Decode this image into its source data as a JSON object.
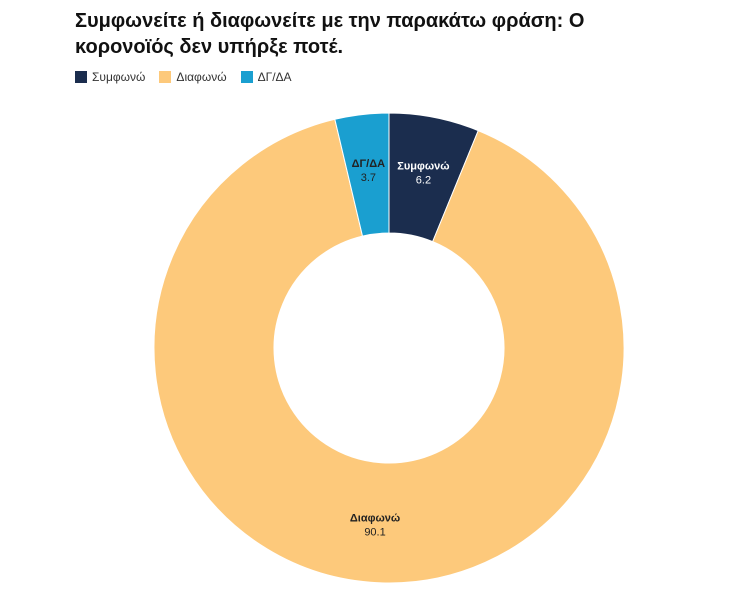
{
  "chart_data": {
    "type": "donut",
    "title": "Συμφωνείτε ή διαφωνείτε με την παρακάτω φράση: Ο κορονοϊός δεν υπήρξε ποτέ.",
    "categories": [
      "Συμφωνώ",
      "Διαφωνώ",
      "ΔΓ/ΔΑ"
    ],
    "values": [
      6.2,
      90.1,
      3.7
    ],
    "colors": [
      "#1b2d4e",
      "#fdc97b",
      "#1a9fd0"
    ],
    "legend": "top-left"
  }
}
